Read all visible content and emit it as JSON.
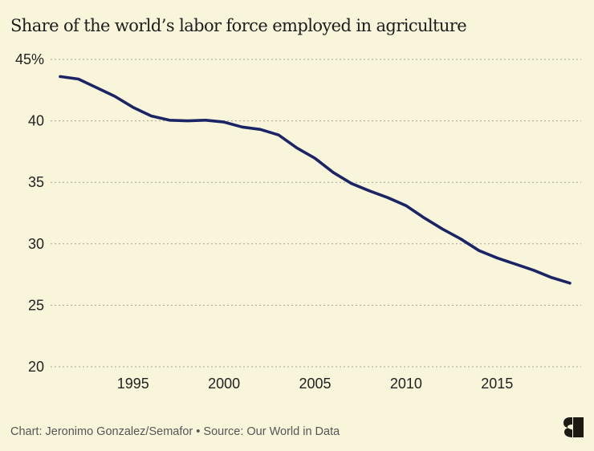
{
  "chart_data": {
    "type": "line",
    "title": "Share of the world’s labor force employed in agriculture",
    "xlabel": "",
    "ylabel": "",
    "ylim": [
      20,
      45
    ],
    "xlim": [
      1991,
      2019
    ],
    "y_ticks": [
      {
        "value": 45,
        "label": "45%"
      },
      {
        "value": 40,
        "label": "40"
      },
      {
        "value": 35,
        "label": "35"
      },
      {
        "value": 30,
        "label": "30"
      },
      {
        "value": 25,
        "label": "25"
      },
      {
        "value": 20,
        "label": "20"
      }
    ],
    "x_ticks": [
      {
        "value": 1995,
        "label": "1995"
      },
      {
        "value": 2000,
        "label": "2000"
      },
      {
        "value": 2005,
        "label": "2005"
      },
      {
        "value": 2010,
        "label": "2010"
      },
      {
        "value": 2015,
        "label": "2015"
      }
    ],
    "grid": "horizontal-dotted",
    "series": [
      {
        "name": "Share employed in agriculture",
        "color": "#1B2566",
        "x": [
          1991,
          1992,
          1993,
          1994,
          1995,
          1996,
          1997,
          1998,
          1999,
          2000,
          2001,
          2002,
          2003,
          2004,
          2005,
          2006,
          2007,
          2008,
          2009,
          2010,
          2011,
          2012,
          2013,
          2014,
          2015,
          2016,
          2017,
          2018,
          2019
        ],
        "values": [
          43.6,
          43.4,
          42.7,
          42.0,
          41.1,
          40.4,
          40.05,
          40.0,
          40.05,
          39.9,
          39.5,
          39.3,
          38.85,
          37.8,
          36.95,
          35.8,
          34.9,
          34.3,
          33.75,
          33.1,
          32.1,
          31.2,
          30.4,
          29.45,
          28.85,
          28.35,
          27.85,
          27.25,
          26.8
        ]
      }
    ]
  },
  "footer": {
    "credit": "Chart: Jeronimo Gonzalez/Semafor • Source: Our World in Data"
  },
  "brand": {
    "logo_icon": "semafor-logo-icon",
    "colors": {
      "background": "#F8F5DA",
      "line": "#1B2566",
      "grid": "#A8A597",
      "logo": "#1d1a14"
    }
  }
}
